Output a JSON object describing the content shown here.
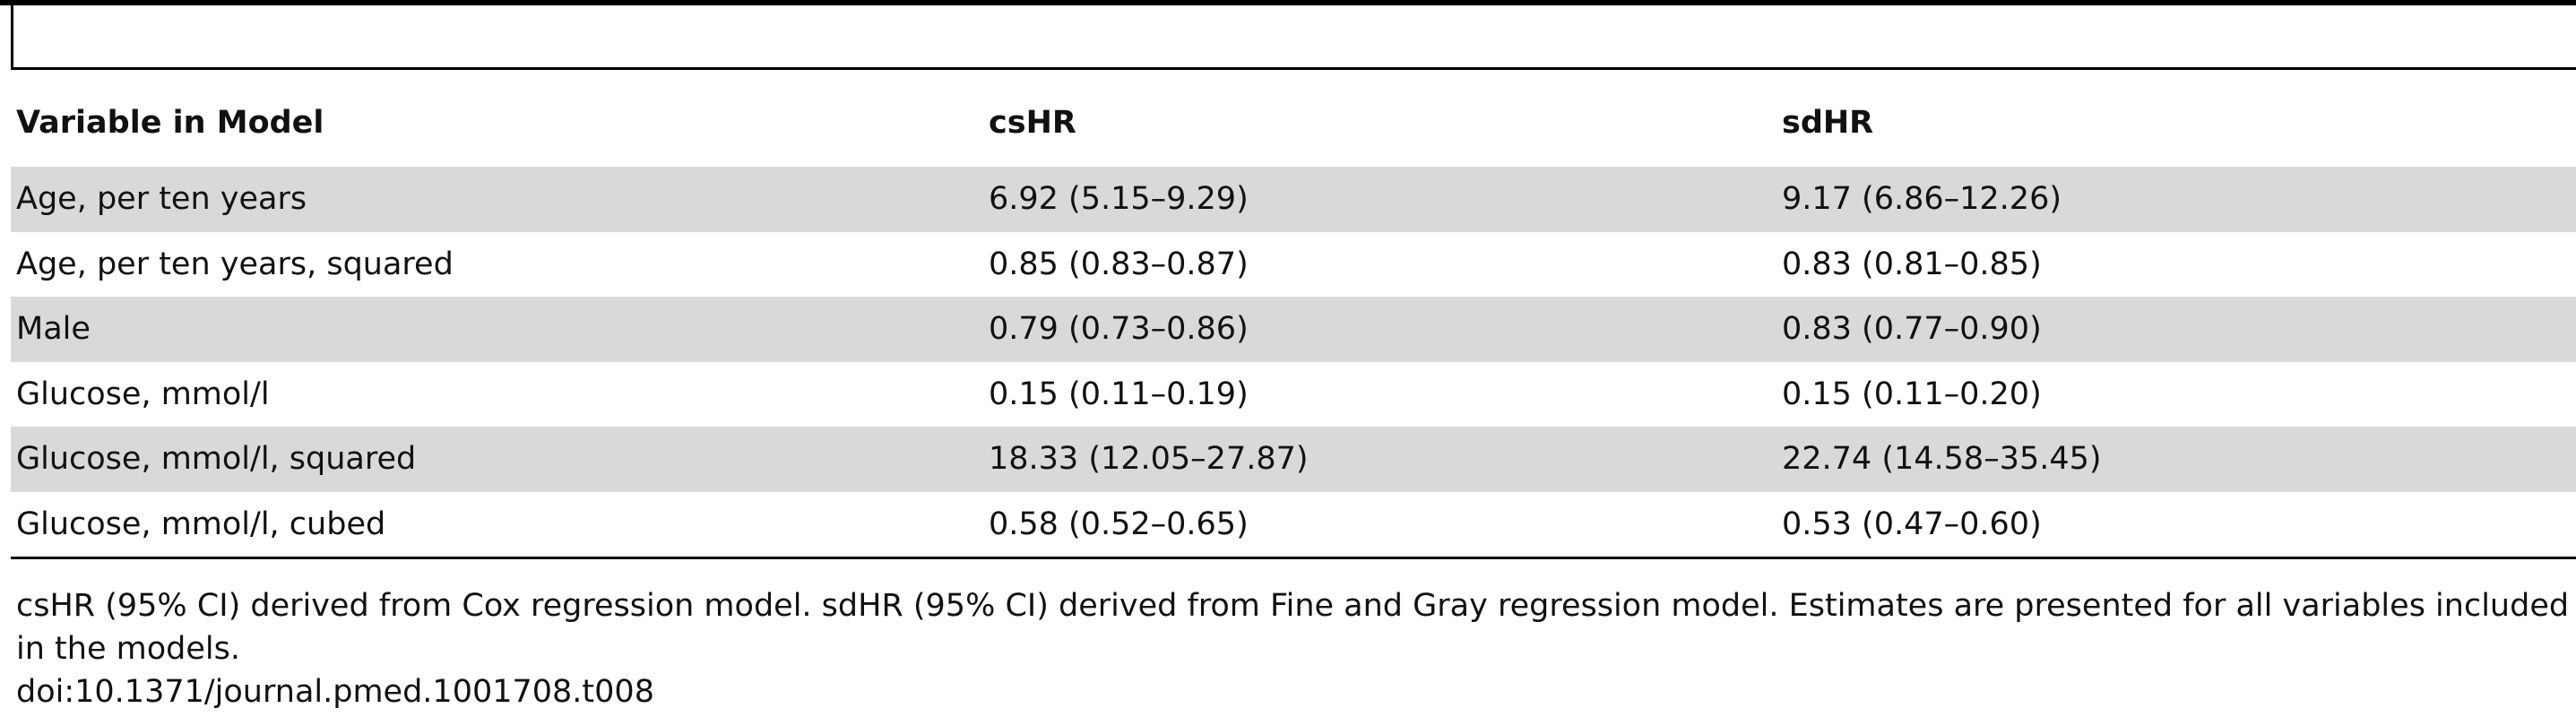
{
  "table": {
    "columns": [
      "Variable in Model",
      "csHR",
      "sdHR"
    ],
    "rows": [
      [
        "Age, per ten years",
        "6.92 (5.15–9.29)",
        "9.17 (6.86–12.26)"
      ],
      [
        "Age, per ten years, squared",
        "0.85 (0.83–0.87)",
        "0.83 (0.81–0.85)"
      ],
      [
        "Male",
        "0.79 (0.73–0.86)",
        "0.83 (0.77–0.90)"
      ],
      [
        "Glucose, mmol/l",
        "0.15 (0.11–0.19)",
        "0.15 (0.11–0.20)"
      ],
      [
        "Glucose, mmol/l, squared",
        "18.33 (12.05–27.87)",
        "22.74 (14.58–35.45)"
      ],
      [
        "Glucose, mmol/l, cubed",
        "0.58 (0.52–0.65)",
        "0.53 (0.47–0.60)"
      ]
    ]
  },
  "footnote": "csHR (95% CI) derived from Cox regression model. sdHR (95% CI) derived from Fine and Gray regression model. Estimates are presented for all variables included in the models.",
  "doi": "doi:10.1371/journal.pmed.1001708.t008"
}
